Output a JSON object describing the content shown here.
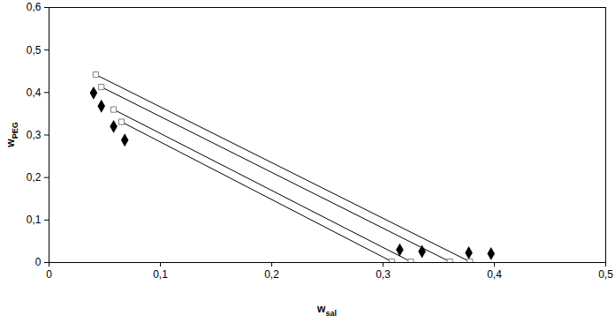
{
  "chart_data": {
    "type": "scatter",
    "xlabel": "wsal",
    "ylabel": "wPEG",
    "xlim": [
      0,
      0.5
    ],
    "ylim": [
      0,
      0.6
    ],
    "xticks": [
      0,
      {
        "value": 0.1,
        "label": "0,1"
      },
      {
        "value": 0.2,
        "label": "0,2"
      },
      {
        "value": 0.3,
        "label": "0,3"
      },
      {
        "value": 0.4,
        "label": "0,4"
      },
      {
        "value": 0.5,
        "label": "0,5"
      }
    ],
    "yticks": [
      0,
      {
        "value": 0.1,
        "label": "0,1"
      },
      {
        "value": 0.2,
        "label": "0,2"
      },
      {
        "value": 0.3,
        "label": "0,3"
      },
      {
        "value": 0.4,
        "label": "0,4"
      },
      {
        "value": 0.5,
        "label": "0,5"
      },
      {
        "value": 0.6,
        "label": "0,6"
      }
    ],
    "grid": false,
    "series": [
      {
        "type": "scatter",
        "marker": "diamond",
        "color": "#000000",
        "x": [
          0.04,
          0.047,
          0.058,
          0.068,
          0.315,
          0.335,
          0.377,
          0.397
        ],
        "y": [
          0.399,
          0.368,
          0.32,
          0.288,
          0.03,
          0.026,
          0.023,
          0.021
        ]
      },
      {
        "type": "line",
        "marker": "square",
        "color": "#000000",
        "x": [
          0.042,
          0.378
        ],
        "y": [
          0.442,
          0.002
        ]
      },
      {
        "type": "line",
        "marker": "square",
        "color": "#000000",
        "x": [
          0.047,
          0.36
        ],
        "y": [
          0.413,
          0.002
        ]
      },
      {
        "type": "line",
        "marker": "square",
        "color": "#000000",
        "x": [
          0.058,
          0.325
        ],
        "y": [
          0.36,
          0.002
        ]
      },
      {
        "type": "line",
        "marker": "square",
        "color": "#000000",
        "x": [
          0.065,
          0.308
        ],
        "y": [
          0.331,
          0.002
        ]
      }
    ]
  }
}
